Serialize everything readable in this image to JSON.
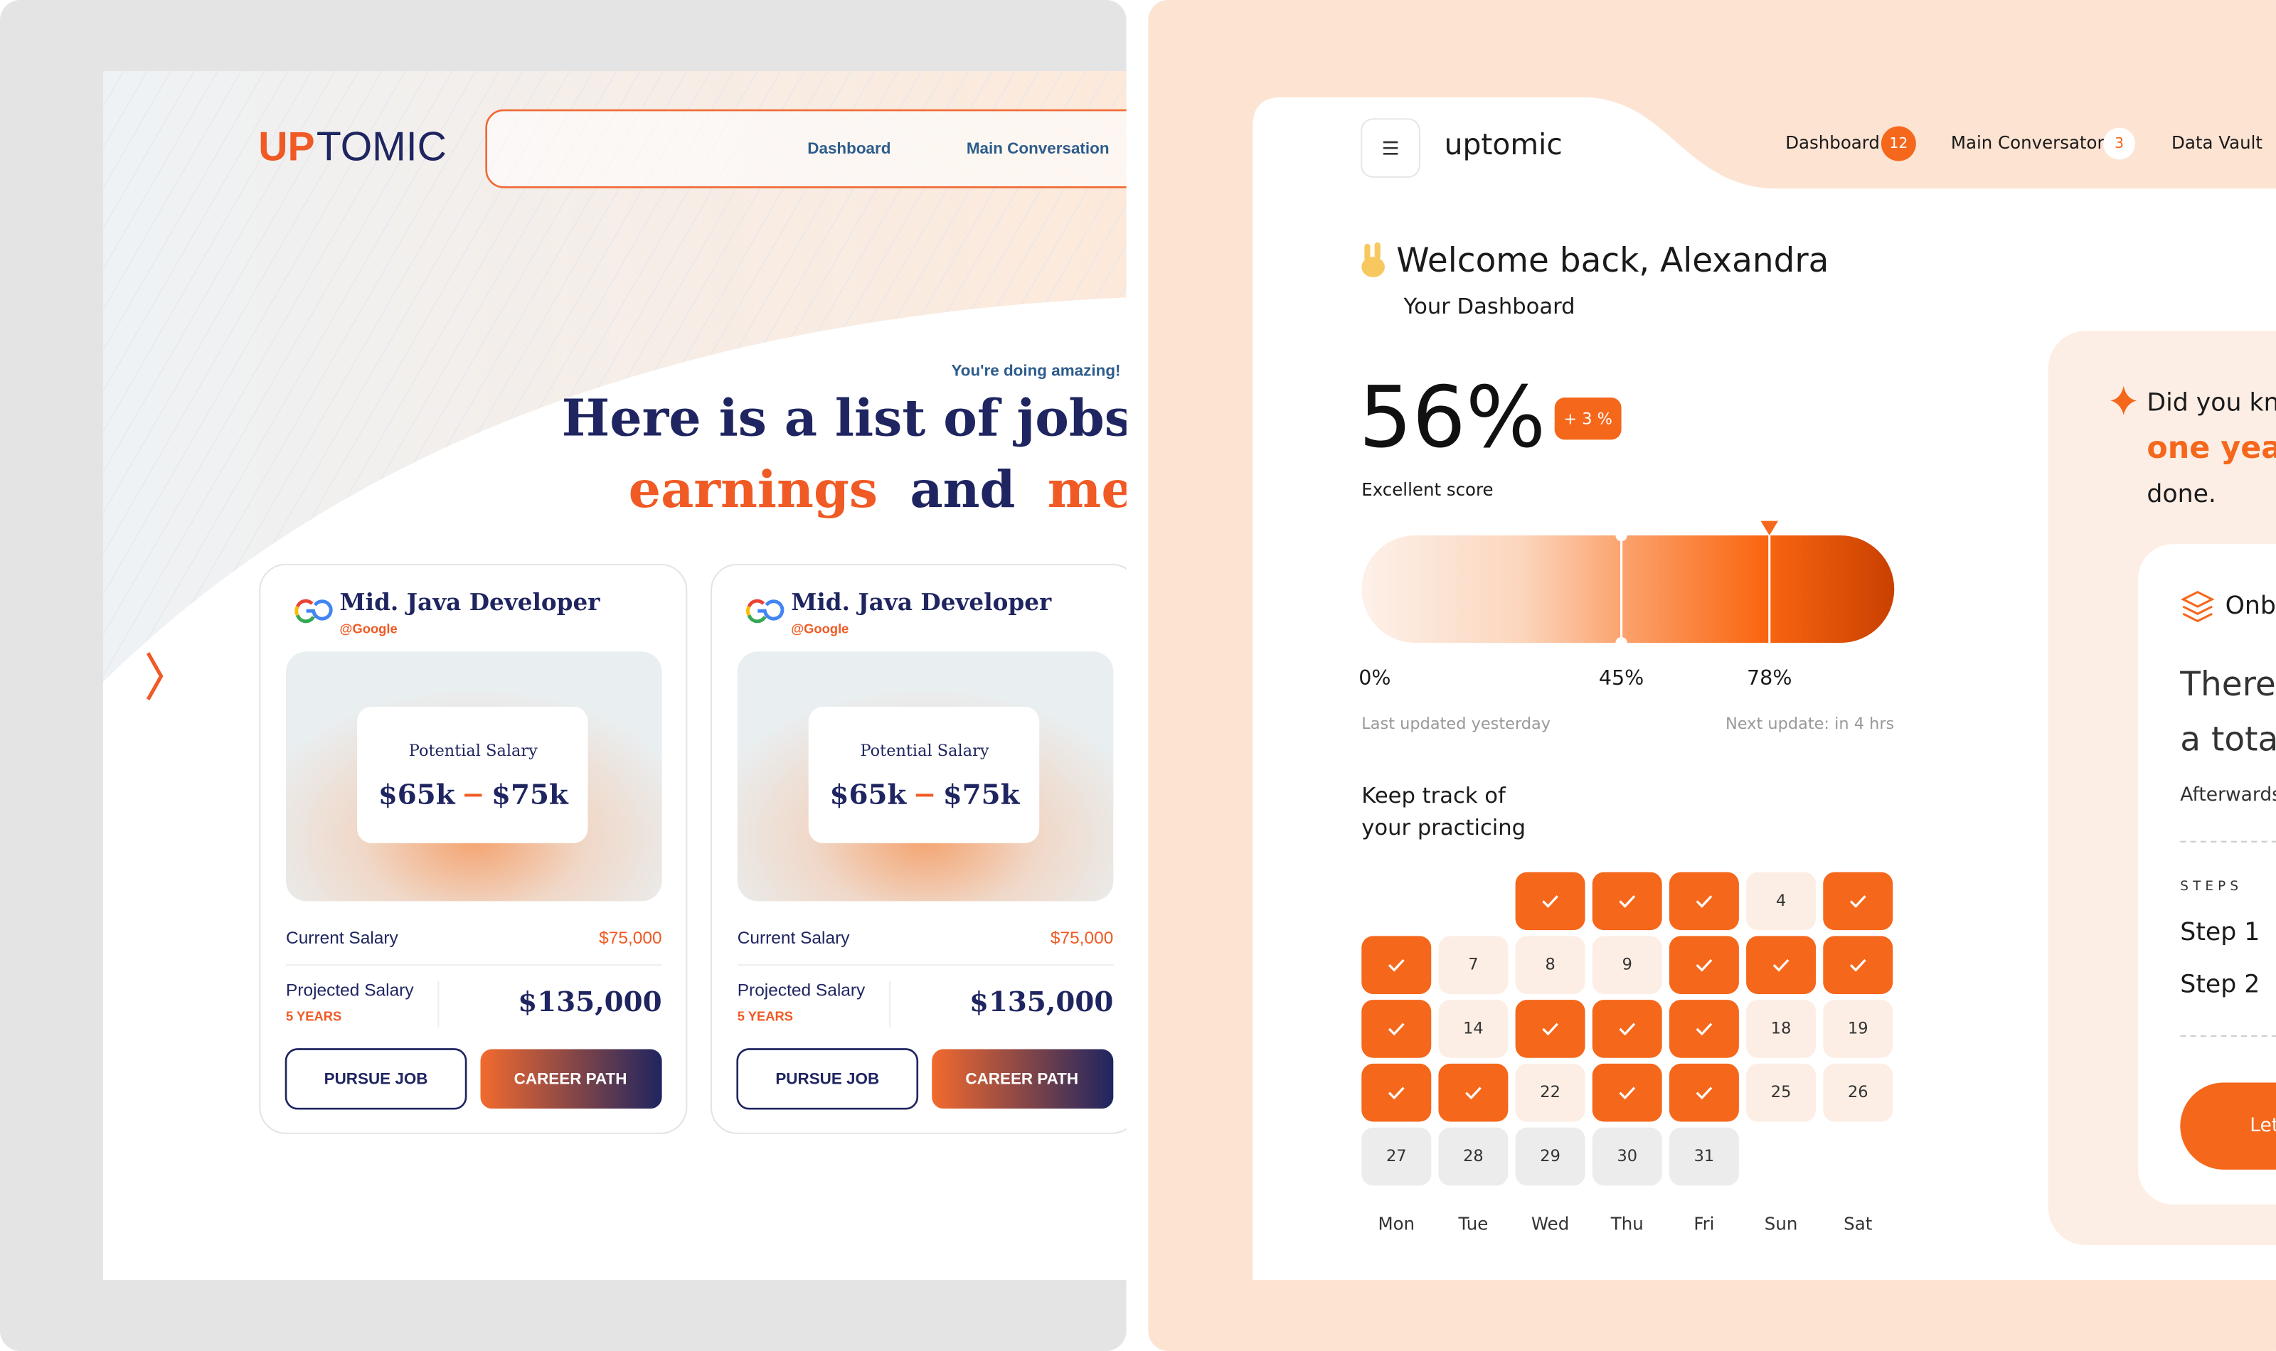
{
  "left": {
    "logo": {
      "accent": "UP",
      "rest": "TOMIC"
    },
    "nav": [
      "Dashboard",
      "Main Conversation"
    ],
    "tagline": "You're doing amazing!",
    "headline": {
      "line1": "Here is a list of jobs whic",
      "line2": [
        "earnings",
        "and",
        "meet yo"
      ]
    },
    "jobs": [
      {
        "title": "Mid. Java Developer",
        "company": "@Google",
        "salary_label": "Potential Salary",
        "salary_low": "$65k",
        "salary_high": "$75k",
        "current_label": "Current Salary",
        "current_value": "$75,000",
        "projected_label": "Projected Salary",
        "projected_period": "5 YEARS",
        "projected_value": "$135,000",
        "buttons": [
          "PURSUE JOB",
          "CAREER PATH"
        ]
      },
      {
        "title": "Mid. Java Developer",
        "company": "@Google",
        "salary_label": "Potential Salary",
        "salary_low": "$65k",
        "salary_high": "$75k",
        "current_label": "Current Salary",
        "current_value": "$75,000",
        "projected_label": "Projected Salary",
        "projected_period": "5 YEARS",
        "projected_value": "$135,000",
        "buttons": [
          "PURSUE JOB",
          "CAREER PATH"
        ]
      }
    ]
  },
  "right": {
    "brand": "uptomic",
    "nav": [
      {
        "label": "Dashboard",
        "badge": "12"
      },
      {
        "label": "Main Conversaton",
        "badge": "3"
      },
      {
        "label": "Data Vault"
      }
    ],
    "welcome": "Welcome back, Alexandra",
    "subtitle": "Your Dashboard",
    "score": {
      "value": "56%",
      "change": "+ 3 %",
      "caption": "Excellent score",
      "markers": [
        "0%",
        "45%",
        "78%"
      ],
      "last_updated": "Last updated yesterday",
      "next_update": "Next update: in 4 hrs"
    },
    "practice": {
      "title": [
        "Keep track of",
        "your practicing"
      ],
      "weekdays": [
        "Mon",
        "Tue",
        "Wed",
        "Thu",
        "Fri",
        "Sun",
        "Sat"
      ],
      "days": [
        null,
        null,
        {
          "done": true
        },
        {
          "done": true
        },
        {
          "done": true
        },
        {
          "day": "4"
        },
        {
          "done": true
        },
        {
          "done": true
        },
        {
          "day": "7"
        },
        {
          "day": "8"
        },
        {
          "day": "9"
        },
        {
          "done": true
        },
        {
          "done": true
        },
        {
          "done": true
        },
        {
          "done": true
        },
        {
          "day": "14"
        },
        {
          "done": true
        },
        {
          "done": true
        },
        {
          "done": true
        },
        {
          "day": "18"
        },
        {
          "day": "19"
        },
        {
          "done": true
        },
        {
          "done": true
        },
        {
          "day": "22"
        },
        {
          "done": true
        },
        {
          "done": true
        },
        {
          "day": "25"
        },
        {
          "day": "26"
        },
        {
          "day": "27",
          "upcoming": true
        },
        {
          "day": "28",
          "upcoming": true
        },
        {
          "day": "29",
          "upcoming": true
        },
        {
          "day": "30",
          "upcoming": true
        },
        {
          "day": "31",
          "upcoming": true
        }
      ]
    },
    "tip": {
      "line1": "Did you know",
      "highlight": "one year",
      "line3": "done."
    },
    "onboarding": {
      "title": "Onb",
      "text": [
        "There",
        "a total"
      ],
      "note": "Afterwards.",
      "steps_label": "STEPS",
      "steps": [
        "Step 1",
        "Step 2"
      ],
      "button": "Let"
    }
  }
}
